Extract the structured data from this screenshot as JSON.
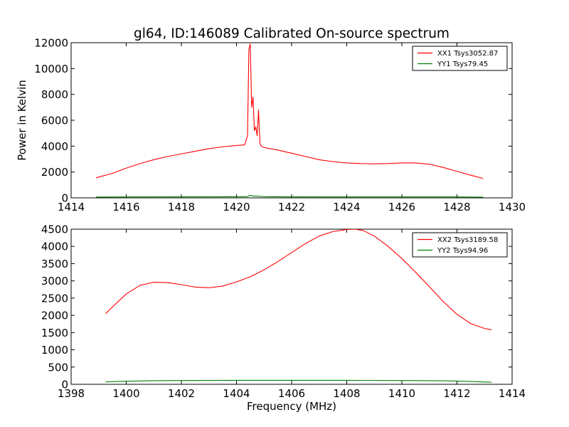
{
  "chart_data": [
    {
      "type": "line",
      "title": "gl64, ID:146089 Calibrated On-source spectrum",
      "xlabel": "",
      "ylabel": "Power in Kelvin",
      "xlim": [
        1414,
        1430
      ],
      "ylim": [
        0,
        12000
      ],
      "xticks": [
        "1414",
        "1416",
        "1418",
        "1420",
        "1422",
        "1424",
        "1426",
        "1428",
        "1430"
      ],
      "yticks": [
        "0",
        "2000",
        "4000",
        "6000",
        "8000",
        "10000",
        "12000"
      ],
      "legend_position": "top-right",
      "series": [
        {
          "name": "XX1 Tsys3052.87",
          "color": "#ff0000",
          "x": [
            1414.9,
            1415.5,
            1416.0,
            1416.5,
            1417.0,
            1417.5,
            1418.0,
            1418.5,
            1419.0,
            1419.5,
            1420.0,
            1420.3,
            1420.4,
            1420.45,
            1420.5,
            1420.55,
            1420.6,
            1420.65,
            1420.7,
            1420.75,
            1420.8,
            1420.85,
            1420.9,
            1420.95,
            1421.0,
            1421.1,
            1421.5,
            1422.0,
            1422.5,
            1423.0,
            1423.5,
            1424.0,
            1424.5,
            1425.0,
            1425.5,
            1426.0,
            1426.5,
            1427.0,
            1427.5,
            1428.0,
            1428.5,
            1428.95
          ],
          "values": [
            1550,
            1900,
            2300,
            2650,
            2950,
            3200,
            3400,
            3600,
            3800,
            3950,
            4050,
            4100,
            4800,
            11500,
            11900,
            7000,
            7800,
            5200,
            5500,
            4800,
            6800,
            4200,
            4000,
            3950,
            3900,
            3850,
            3700,
            3450,
            3200,
            2950,
            2800,
            2700,
            2650,
            2630,
            2650,
            2700,
            2700,
            2600,
            2350,
            2050,
            1750,
            1500
          ]
        },
        {
          "name": "YY1 Tsys79.45",
          "color": "#008000",
          "x": [
            1414.9,
            1416.0,
            1418.0,
            1420.0,
            1420.4,
            1420.5,
            1420.6,
            1420.8,
            1420.9,
            1421.0,
            1422.0,
            1424.0,
            1426.0,
            1428.0,
            1428.95
          ],
          "values": [
            60,
            75,
            80,
            85,
            100,
            200,
            140,
            130,
            110,
            90,
            80,
            75,
            75,
            70,
            55
          ]
        }
      ]
    },
    {
      "type": "line",
      "title": "",
      "xlabel": "Frequency (MHz)",
      "ylabel": "",
      "xlim": [
        1398,
        1414
      ],
      "ylim": [
        0,
        4500
      ],
      "xticks": [
        "1398",
        "1400",
        "1402",
        "1404",
        "1406",
        "1408",
        "1410",
        "1412",
        "1414"
      ],
      "yticks": [
        "0",
        "500",
        "1000",
        "1500",
        "2000",
        "2500",
        "3000",
        "3500",
        "4000",
        "4500"
      ],
      "legend_position": "top-right",
      "series": [
        {
          "name": "XX2 Tsys3189.58",
          "color": "#ff0000",
          "x": [
            1399.25,
            1399.6,
            1400.0,
            1400.5,
            1401.0,
            1401.5,
            1402.0,
            1402.5,
            1403.0,
            1403.5,
            1404.0,
            1404.5,
            1405.0,
            1405.5,
            1406.0,
            1406.5,
            1407.0,
            1407.5,
            1408.0,
            1408.3,
            1408.6,
            1409.0,
            1409.5,
            1410.0,
            1410.5,
            1411.0,
            1411.5,
            1412.0,
            1412.5,
            1413.0,
            1413.25
          ],
          "values": [
            2050,
            2320,
            2620,
            2870,
            2960,
            2950,
            2890,
            2820,
            2800,
            2850,
            2970,
            3120,
            3320,
            3560,
            3820,
            4080,
            4300,
            4430,
            4490,
            4500,
            4460,
            4300,
            4000,
            3650,
            3250,
            2830,
            2400,
            2030,
            1760,
            1620,
            1580
          ]
        },
        {
          "name": "YY2 Tsys94.96",
          "color": "#008000",
          "x": [
            1399.25,
            1400.0,
            1401.0,
            1402.0,
            1404.0,
            1406.0,
            1408.0,
            1410.0,
            1411.0,
            1412.0,
            1413.25
          ],
          "values": [
            70,
            90,
            105,
            110,
            115,
            115,
            115,
            110,
            105,
            95,
            60
          ]
        }
      ]
    }
  ]
}
